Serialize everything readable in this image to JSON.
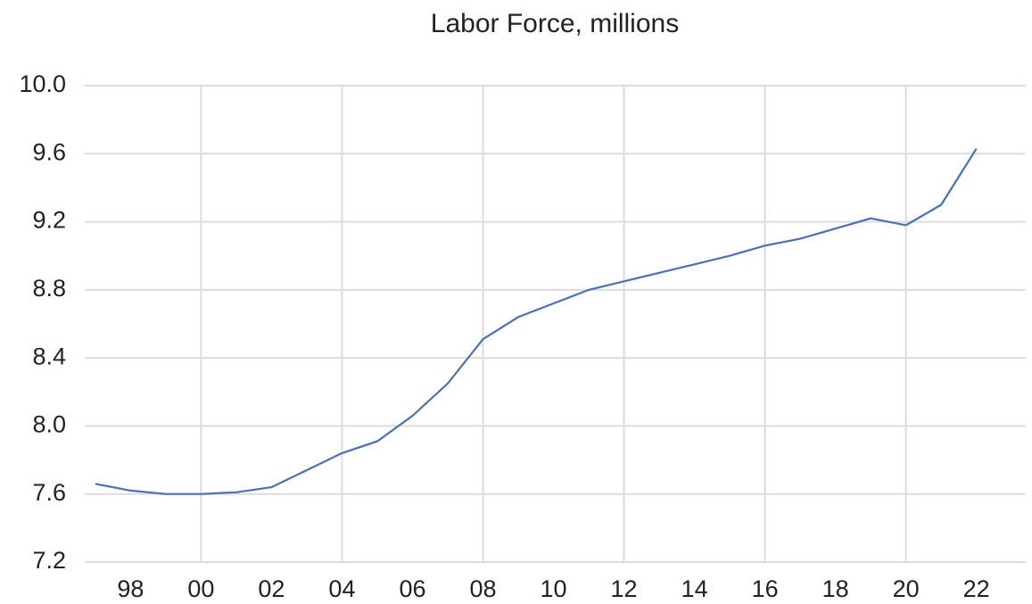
{
  "chart_data": {
    "type": "line",
    "title": "Labor Force, millions",
    "x": [
      1997,
      1998,
      1999,
      2000,
      2001,
      2002,
      2003,
      2004,
      2005,
      2006,
      2007,
      2008,
      2009,
      2010,
      2011,
      2012,
      2013,
      2014,
      2015,
      2016,
      2017,
      2018,
      2019,
      2020,
      2021,
      2022
    ],
    "series": [
      {
        "name": "Labor Force",
        "color": "#4a70b5",
        "values": [
          7.66,
          7.62,
          7.6,
          7.6,
          7.61,
          7.64,
          7.74,
          7.84,
          7.91,
          8.06,
          8.25,
          8.51,
          8.64,
          8.72,
          8.8,
          8.85,
          8.9,
          8.95,
          9.0,
          9.06,
          9.1,
          9.16,
          9.22,
          9.18,
          9.3,
          9.63
        ]
      }
    ],
    "xlim": [
      1996.7,
      2023.4
    ],
    "xticks": [
      {
        "value": 1998,
        "label": "98"
      },
      {
        "value": 2000,
        "label": "00"
      },
      {
        "value": 2002,
        "label": "02"
      },
      {
        "value": 2004,
        "label": "04"
      },
      {
        "value": 2006,
        "label": "06"
      },
      {
        "value": 2008,
        "label": "08"
      },
      {
        "value": 2010,
        "label": "10"
      },
      {
        "value": 2012,
        "label": "12"
      },
      {
        "value": 2014,
        "label": "14"
      },
      {
        "value": 2016,
        "label": "16"
      },
      {
        "value": 2018,
        "label": "18"
      },
      {
        "value": 2020,
        "label": "20"
      },
      {
        "value": 2022,
        "label": "22"
      }
    ],
    "ylim": [
      7.2,
      10.0
    ],
    "yticks": [
      7.2,
      7.6,
      {
        "value": 8,
        "label": "8.0"
      },
      8.4,
      8.8,
      9.2,
      9.6,
      {
        "value": 10,
        "label": "10.0"
      }
    ],
    "grid": true
  }
}
